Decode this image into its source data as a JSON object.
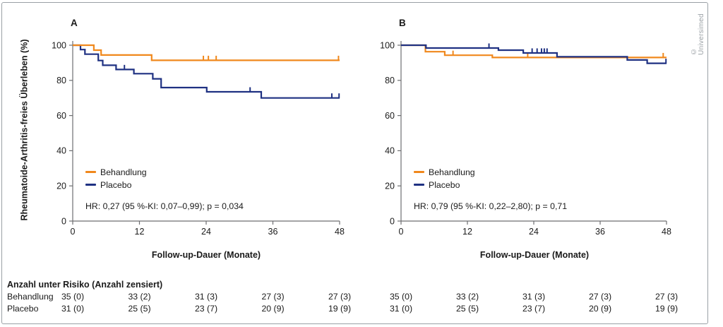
{
  "copyright": "© Universimed",
  "colors": {
    "behandlung": "#F0881C",
    "placebo": "#1F3182",
    "axis": "#6d6e71",
    "text": "#1a1a1a",
    "copyright_text": "#9ba1a6",
    "frame_border": "#9aa0a5"
  },
  "legend": {
    "behandlung": "Behandlung",
    "placebo": "Placebo"
  },
  "y_axis_title": "Rheumatoide-Arthritis-freies Überleben (%)",
  "chart_data": [
    {
      "type": "line",
      "panel_label": "A",
      "xlabel": "Follow-up-Dauer (Monate)",
      "ylabel": "Rheumatoide-Arthritis-freies Überleben (%)",
      "xlim": [
        0,
        48
      ],
      "ylim": [
        0,
        100
      ],
      "x_ticks": [
        0,
        12,
        24,
        36,
        48
      ],
      "y_ticks": [
        0,
        20,
        40,
        60,
        80,
        100
      ],
      "grid": false,
      "legend_position": "lower-left",
      "hr_text": "HR: 0,27 (95 %-KI: 0,07–0,99); p = 0,034",
      "series": [
        {
          "name": "Placebo",
          "color_key": "placebo",
          "points": [
            [
              0,
              100
            ],
            [
              1.4,
              100
            ],
            [
              1.4,
              97.5
            ],
            [
              2.2,
              97.5
            ],
            [
              2.2,
              94.9
            ],
            [
              4.6,
              94.9
            ],
            [
              4.6,
              91.3
            ],
            [
              5.4,
              91.3
            ],
            [
              5.4,
              88.6
            ],
            [
              7.8,
              88.6
            ],
            [
              7.8,
              86.2
            ],
            [
              11,
              86.2
            ],
            [
              11,
              83.8
            ],
            [
              14.4,
              83.8
            ],
            [
              14.4,
              80.9
            ],
            [
              15.9,
              80.9
            ],
            [
              15.9,
              75.9
            ],
            [
              24.1,
              75.9
            ],
            [
              24.1,
              73.5
            ],
            [
              33.9,
              73.5
            ],
            [
              33.9,
              70
            ],
            [
              48,
              70
            ]
          ],
          "censor_marks": [
            [
              9.3,
              86.2
            ],
            [
              31.9,
              73.5
            ],
            [
              46.6,
              70
            ],
            [
              47.9,
              70
            ]
          ]
        },
        {
          "name": "Behandlung",
          "color_key": "behandlung",
          "points": [
            [
              0,
              100
            ],
            [
              3.8,
              100
            ],
            [
              3.8,
              97.2
            ],
            [
              5.1,
              97.2
            ],
            [
              5.1,
              94.4
            ],
            [
              14.2,
              94.4
            ],
            [
              14.2,
              91.4
            ],
            [
              48,
              91.4
            ]
          ],
          "censor_marks": [
            [
              23.5,
              91.4
            ],
            [
              24.4,
              91.4
            ],
            [
              25.8,
              91.4
            ],
            [
              47.8,
              91.4
            ]
          ]
        }
      ]
    },
    {
      "type": "line",
      "panel_label": "B",
      "xlabel": "Follow-up-Dauer (Monate)",
      "ylabel": "Rheumatoide-Arthritis-freies Überleben (%)",
      "xlim": [
        0,
        48
      ],
      "ylim": [
        0,
        100
      ],
      "x_ticks": [
        0,
        12,
        24,
        36,
        48
      ],
      "y_ticks": [
        0,
        20,
        40,
        60,
        80,
        100
      ],
      "grid": false,
      "legend_position": "lower-left",
      "hr_text": "HR: 0,79 (95 %-KI: 0,22–2,80); p = 0,71",
      "series": [
        {
          "name": "Behandlung",
          "color_key": "behandlung",
          "points": [
            [
              0,
              100
            ],
            [
              4.4,
              100
            ],
            [
              4.4,
              96.3
            ],
            [
              7.9,
              96.3
            ],
            [
              7.9,
              94.3
            ],
            [
              16.5,
              94.3
            ],
            [
              16.5,
              93
            ],
            [
              48,
              93
            ]
          ],
          "censor_marks": [
            [
              9.4,
              94.3
            ],
            [
              22.9,
              93
            ],
            [
              47.4,
              93
            ]
          ]
        },
        {
          "name": "Placebo",
          "color_key": "placebo",
          "points": [
            [
              0,
              100
            ],
            [
              4.5,
              100
            ],
            [
              4.5,
              98.4
            ],
            [
              17.6,
              98.4
            ],
            [
              17.6,
              97.2
            ],
            [
              22.1,
              97.2
            ],
            [
              22.1,
              95.6
            ],
            [
              28.2,
              95.6
            ],
            [
              28.2,
              93.4
            ],
            [
              40.9,
              93.4
            ],
            [
              40.9,
              91.6
            ],
            [
              44.5,
              91.6
            ],
            [
              44.5,
              89.7
            ],
            [
              48,
              89.7
            ]
          ],
          "censor_marks": [
            [
              15.9,
              98.4
            ],
            [
              23.7,
              95.6
            ],
            [
              24.6,
              95.6
            ],
            [
              25.4,
              95.6
            ],
            [
              25.9,
              95.6
            ],
            [
              26.4,
              95.6
            ],
            [
              47.9,
              89.7
            ]
          ]
        }
      ]
    }
  ],
  "risk_table": {
    "header": "Anzahl unter Risiko (Anzahl zensiert)",
    "months": [
      0,
      12,
      24,
      36,
      48
    ],
    "rows": [
      {
        "label": "Behandlung",
        "panel_a": [
          "35 (0)",
          "33 (2)",
          "31 (3)",
          "27 (3)",
          "27 (3)"
        ],
        "panel_b": [
          "35 (0)",
          "33 (2)",
          "31 (3)",
          "27 (3)",
          "27 (3)"
        ]
      },
      {
        "label": "Placebo",
        "panel_a": [
          "31 (0)",
          "25 (5)",
          "23 (7)",
          "20 (9)",
          "19 (9)"
        ],
        "panel_b": [
          "31 (0)",
          "25 (5)",
          "23 (7)",
          "20 (9)",
          "19 (9)"
        ]
      }
    ]
  }
}
